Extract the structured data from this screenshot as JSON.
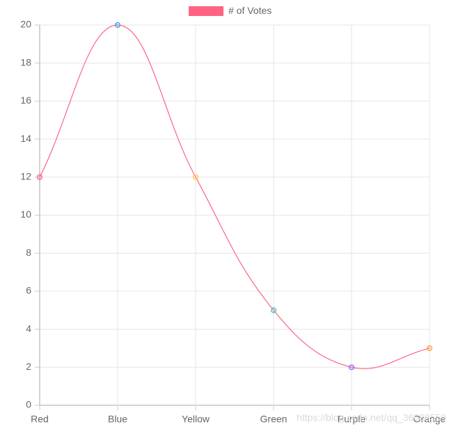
{
  "chart_data": {
    "type": "line",
    "categories": [
      "Red",
      "Blue",
      "Yellow",
      "Green",
      "Purple",
      "Orange"
    ],
    "series": [
      {
        "name": "# of Votes",
        "color": "#ff6384",
        "values": [
          12,
          20,
          12,
          5,
          2,
          3
        ],
        "point_colors": [
          "#ff6384",
          "#36a2eb",
          "#ffce56",
          "#4bc0c0",
          "#9966ff",
          "#ff9f40"
        ]
      }
    ],
    "ylim": [
      0,
      20
    ],
    "yticks": [
      0,
      2,
      4,
      6,
      8,
      10,
      12,
      14,
      16,
      18,
      20
    ],
    "grid": true,
    "legend": "top",
    "watermark": "https://blog.csdn.net/qq_36688559"
  }
}
